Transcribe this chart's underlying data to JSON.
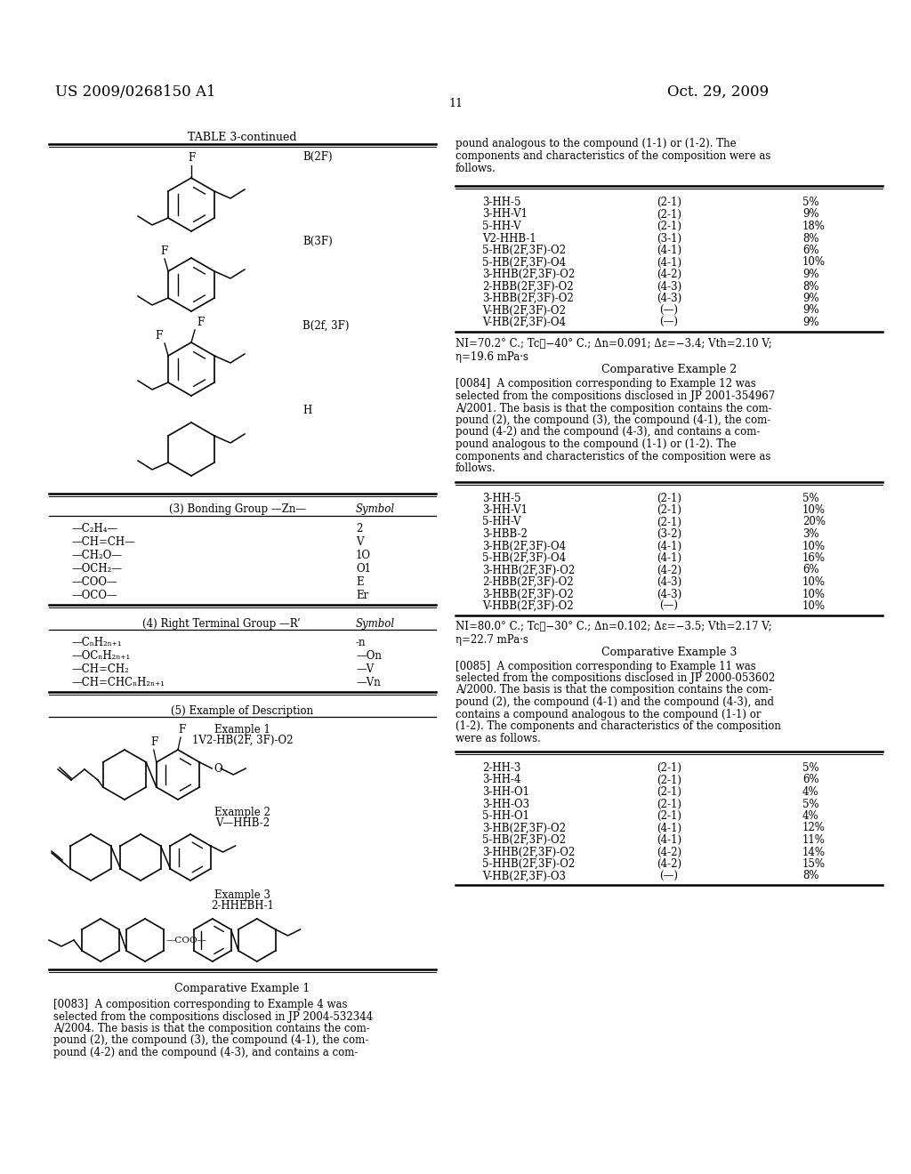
{
  "bg_color": "#ffffff",
  "header_left": "US 2009/0268150 A1",
  "header_right": "Oct. 29, 2009",
  "page_number": "11",
  "right_col_intro": [
    "pound analogous to the compound (1-1) or (1-2). The",
    "components and characteristics of the composition were as",
    "follows."
  ],
  "comp_example1_table": [
    [
      "3-HH-5",
      "(2-1)",
      "5%"
    ],
    [
      "3-HH-V1",
      "(2-1)",
      "9%"
    ],
    [
      "5-HH-V",
      "(2-1)",
      "18%"
    ],
    [
      "V2-HHB-1",
      "(3-1)",
      "8%"
    ],
    [
      "5-HB(2F,3F)-O2",
      "(4-1)",
      "6%"
    ],
    [
      "5-HB(2F,3F)-O4",
      "(4-1)",
      "10%"
    ],
    [
      "3-HHB(2F,3F)-O2",
      "(4-2)",
      "9%"
    ],
    [
      "2-HBB(2F,3F)-O2",
      "(4-3)",
      "8%"
    ],
    [
      "3-HBB(2F,3F)-O2",
      "(4-3)",
      "9%"
    ],
    [
      "V-HB(2F,3F)-O2",
      "(—)",
      "9%"
    ],
    [
      "V-HB(2F,3F)-O4",
      "(—)",
      "9%"
    ]
  ],
  "comp_example1_props": "NI=70.2° C.; Tc≦−40° C.; Δn=0.091; Δε=−3.4; Vth=2.10 V;\nη=19.6 mPa·s",
  "comp_example2_title": "Comparative Example 2",
  "comp_example2_para": [
    "[0084]  A composition corresponding to Example 12 was",
    "selected from the compositions disclosed in JP 2001-354967",
    "A/2001. The basis is that the composition contains the com-",
    "pound (2), the compound (3), the compound (4-1), the com-",
    "pound (4-2) and the compound (4-3), and contains a com-",
    "pound analogous to the compound (1-1) or (1-2). The",
    "components and characteristics of the composition were as",
    "follows."
  ],
  "comp_example2_table": [
    [
      "3-HH-5",
      "(2-1)",
      "5%"
    ],
    [
      "3-HH-V1",
      "(2-1)",
      "10%"
    ],
    [
      "5-HH-V",
      "(2-1)",
      "20%"
    ],
    [
      "3-HBB-2",
      "(3-2)",
      "3%"
    ],
    [
      "3-HB(2F,3F)-O4",
      "(4-1)",
      "10%"
    ],
    [
      "5-HB(2F,3F)-O4",
      "(4-1)",
      "16%"
    ],
    [
      "3-HHB(2F,3F)-O2",
      "(4-2)",
      "6%"
    ],
    [
      "2-HBB(2F,3F)-O2",
      "(4-3)",
      "10%"
    ],
    [
      "3-HBB(2F,3F)-O2",
      "(4-3)",
      "10%"
    ],
    [
      "V-HBB(2F,3F)-O2",
      "(—)",
      "10%"
    ]
  ],
  "comp_example2_props": "NI=80.0° C.; Tc≦−30° C.; Δn=0.102; Δε=−3.5; Vth=2.17 V;\nη=22.7 mPa·s",
  "comp_example3_title": "Comparative Example 3",
  "comp_example3_para": [
    "[0085]  A composition corresponding to Example 11 was",
    "selected from the compositions disclosed in JP 2000-053602",
    "A/2000. The basis is that the composition contains the com-",
    "pound (2), the compound (4-1) and the compound (4-3), and",
    "contains a compound analogous to the compound (1-1) or",
    "(1-2). The components and characteristics of the composition",
    "were as follows."
  ],
  "comp_example3_table": [
    [
      "2-HH-3",
      "(2-1)",
      "5%"
    ],
    [
      "3-HH-4",
      "(2-1)",
      "6%"
    ],
    [
      "3-HH-O1",
      "(2-1)",
      "4%"
    ],
    [
      "3-HH-O3",
      "(2-1)",
      "5%"
    ],
    [
      "5-HH-O1",
      "(2-1)",
      "4%"
    ],
    [
      "3-HB(2F,3F)-O2",
      "(4-1)",
      "12%"
    ],
    [
      "5-HB(2F,3F)-O2",
      "(4-1)",
      "11%"
    ],
    [
      "3-HHB(2F,3F)-O2",
      "(4-2)",
      "14%"
    ],
    [
      "5-HHB(2F,3F)-O2",
      "(4-2)",
      "15%"
    ],
    [
      "V-HB(2F,3F)-O3",
      "(—)",
      "8%"
    ]
  ],
  "comp_example1_title_left": "Comparative Example 1",
  "comp_example1_para_left": [
    "[0083]  A composition corresponding to Example 4 was",
    "selected from the compositions disclosed in JP 2004-532344",
    "A/2004. The basis is that the composition contains the com-",
    "pound (2), the compound (3), the compound (4-1), the com-",
    "pound (4-2) and the compound (4-3), and contains a com-"
  ],
  "bonding_rows": [
    [
      "—C₂H₄—",
      "2"
    ],
    [
      "—CH=CH—",
      "V"
    ],
    [
      "—CH₂O—",
      "1O"
    ],
    [
      "—OCH₂—",
      "O1"
    ],
    [
      "—COO—",
      "E"
    ],
    [
      "—OCO—",
      "Er"
    ]
  ],
  "terminal_rows": [
    [
      "—CₙH₂ₙ₊₁",
      "-n"
    ],
    [
      "—OCₙH₂ₙ₊₁",
      "—On"
    ],
    [
      "—CH=CH₂",
      "—V"
    ],
    [
      "—CH=CHCₙH₂ₙ₊₁",
      "—Vn"
    ]
  ]
}
